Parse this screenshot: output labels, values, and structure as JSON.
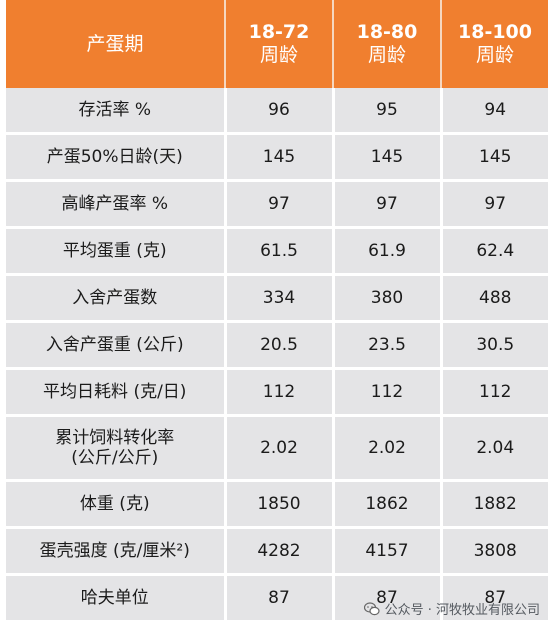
{
  "header": {
    "title": "产蛋期",
    "columns": [
      {
        "range": "18-72",
        "unit": "周龄"
      },
      {
        "range": "18-80",
        "unit": "周龄"
      },
      {
        "range": "18-100",
        "unit": "周龄"
      }
    ]
  },
  "rows": [
    {
      "label": "存活率 %",
      "values": [
        "96",
        "95",
        "94"
      ]
    },
    {
      "label": "产蛋50%日龄(天)",
      "values": [
        "145",
        "145",
        "145"
      ]
    },
    {
      "label": "高峰产蛋率 %",
      "values": [
        "97",
        "97",
        "97"
      ]
    },
    {
      "label": "平均蛋重 (克)",
      "values": [
        "61.5",
        "61.9",
        "62.4"
      ]
    },
    {
      "label": "入舍产蛋数",
      "values": [
        "334",
        "380",
        "488"
      ]
    },
    {
      "label": "入舍产蛋重 (公斤)",
      "values": [
        "20.5",
        "23.5",
        "30.5"
      ]
    },
    {
      "label": "平均日耗料 (克/日)",
      "values": [
        "112",
        "112",
        "112"
      ]
    },
    {
      "label_line1": "累计饲料转化率",
      "label_line2": "(公斤/公斤)",
      "values": [
        "2.02",
        "2.02",
        "2.04"
      ]
    },
    {
      "label": "体重 (克)",
      "values": [
        "1850",
        "1862",
        "1882"
      ]
    },
    {
      "label": "蛋壳强度 (克/厘米²)",
      "values": [
        "4282",
        "4157",
        "3808"
      ]
    },
    {
      "label": "哈夫单位",
      "values": [
        "87",
        "87",
        "87"
      ]
    }
  ],
  "watermark": {
    "text": "公众号 · 河牧牧业有限公司",
    "icon": "wechat-icon"
  }
}
